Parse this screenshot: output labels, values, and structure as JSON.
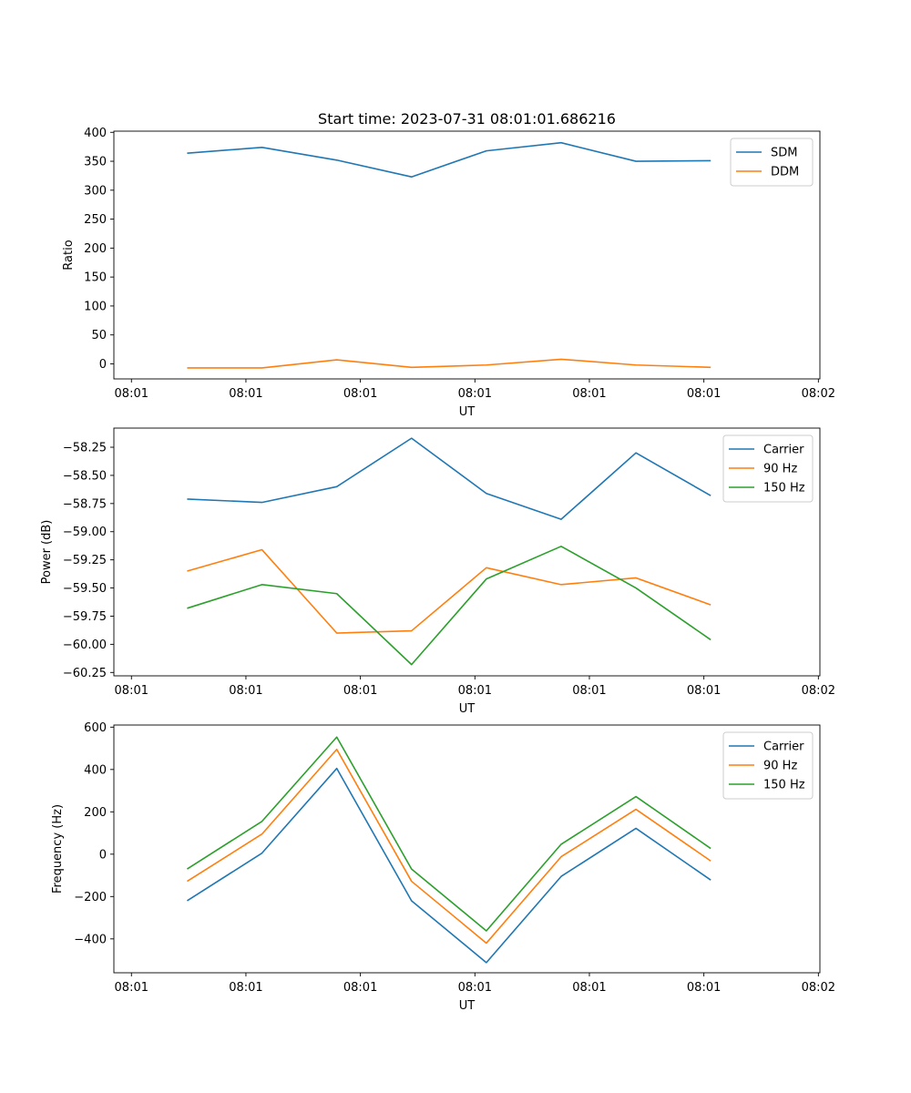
{
  "chart_data": [
    {
      "type": "line",
      "title": "Start time: 2023-07-31 08:01:01.686216",
      "xlabel": "UT",
      "ylabel": "Ratio",
      "xlim": [
        -0.23,
        9.02
      ],
      "xtick_positions": [
        0,
        1.5,
        3,
        4.5,
        6,
        7.5,
        9
      ],
      "xtick_labels": [
        "08:01",
        "08:01",
        "08:01",
        "08:01",
        "08:01",
        "08:01",
        "08:02"
      ],
      "ylim": [
        -26,
        402
      ],
      "yticks": [
        0,
        50,
        100,
        150,
        200,
        250,
        300,
        350,
        400
      ],
      "ytick_labels": [
        "0",
        "50",
        "100",
        "150",
        "200",
        "250",
        "300",
        "350",
        "400"
      ],
      "x": [
        0.73,
        1.71,
        2.69,
        3.67,
        4.65,
        5.63,
        6.61,
        7.59
      ],
      "legend_position": "top-right",
      "series": [
        {
          "name": "SDM",
          "color": "#1f77b4",
          "values": [
            364,
            374,
            352,
            323,
            368,
            382,
            350,
            351
          ]
        },
        {
          "name": "DDM",
          "color": "#ff7f0e",
          "values": [
            -7,
            -7,
            7,
            -6,
            -2,
            8,
            -2,
            -6
          ]
        }
      ]
    },
    {
      "type": "line",
      "title": "",
      "xlabel": "UT",
      "ylabel": "Power (dB)",
      "xlim": [
        -0.23,
        9.02
      ],
      "xtick_positions": [
        0,
        1.5,
        3,
        4.5,
        6,
        7.5,
        9
      ],
      "xtick_labels": [
        "08:01",
        "08:01",
        "08:01",
        "08:01",
        "08:01",
        "08:01",
        "08:02"
      ],
      "ylim": [
        -60.28,
        -58.08
      ],
      "yticks": [
        -60.25,
        -60.0,
        -59.75,
        -59.5,
        -59.25,
        -59.0,
        -58.75,
        -58.5,
        -58.25
      ],
      "ytick_labels": [
        "−60.25",
        "−60.00",
        "−59.75",
        "−59.50",
        "−59.25",
        "−59.00",
        "−58.75",
        "−58.50",
        "−58.25"
      ],
      "x": [
        0.73,
        1.71,
        2.69,
        3.67,
        4.65,
        5.63,
        6.61,
        7.59
      ],
      "legend_position": "top-right",
      "series": [
        {
          "name": "Carrier",
          "color": "#1f77b4",
          "values": [
            -58.71,
            -58.74,
            -58.6,
            -58.17,
            -58.66,
            -58.89,
            -58.3,
            -58.68
          ]
        },
        {
          "name": "90 Hz",
          "color": "#ff7f0e",
          "values": [
            -59.35,
            -59.16,
            -59.9,
            -59.88,
            -59.32,
            -59.47,
            -59.41,
            -59.65
          ]
        },
        {
          "name": "150 Hz",
          "color": "#2ca02c",
          "values": [
            -59.68,
            -59.47,
            -59.55,
            -60.18,
            -59.42,
            -59.13,
            -59.5,
            -59.96
          ]
        }
      ]
    },
    {
      "type": "line",
      "title": "",
      "xlabel": "UT",
      "ylabel": "Frequency (Hz)",
      "xlim": [
        -0.23,
        9.02
      ],
      "xtick_positions": [
        0,
        1.5,
        3,
        4.5,
        6,
        7.5,
        9
      ],
      "xtick_labels": [
        "08:01",
        "08:01",
        "08:01",
        "08:01",
        "08:01",
        "08:01",
        "08:02"
      ],
      "ylim": [
        -560,
        610
      ],
      "yticks": [
        -400,
        -200,
        0,
        200,
        400,
        600
      ],
      "ytick_labels": [
        "−400",
        "−200",
        "0",
        "200",
        "400",
        "600"
      ],
      "x": [
        0.73,
        1.71,
        2.69,
        3.67,
        4.65,
        5.63,
        6.61,
        7.59
      ],
      "legend_position": "top-right",
      "series": [
        {
          "name": "Carrier",
          "color": "#1f77b4",
          "values": [
            -220,
            5,
            405,
            -220,
            -512,
            -105,
            122,
            -122
          ]
        },
        {
          "name": "90 Hz",
          "color": "#ff7f0e",
          "values": [
            -128,
            95,
            495,
            -128,
            -420,
            -12,
            212,
            -32
          ]
        },
        {
          "name": "150 Hz",
          "color": "#2ca02c",
          "values": [
            -70,
            155,
            553,
            -70,
            -362,
            47,
            272,
            27
          ]
        }
      ]
    }
  ]
}
